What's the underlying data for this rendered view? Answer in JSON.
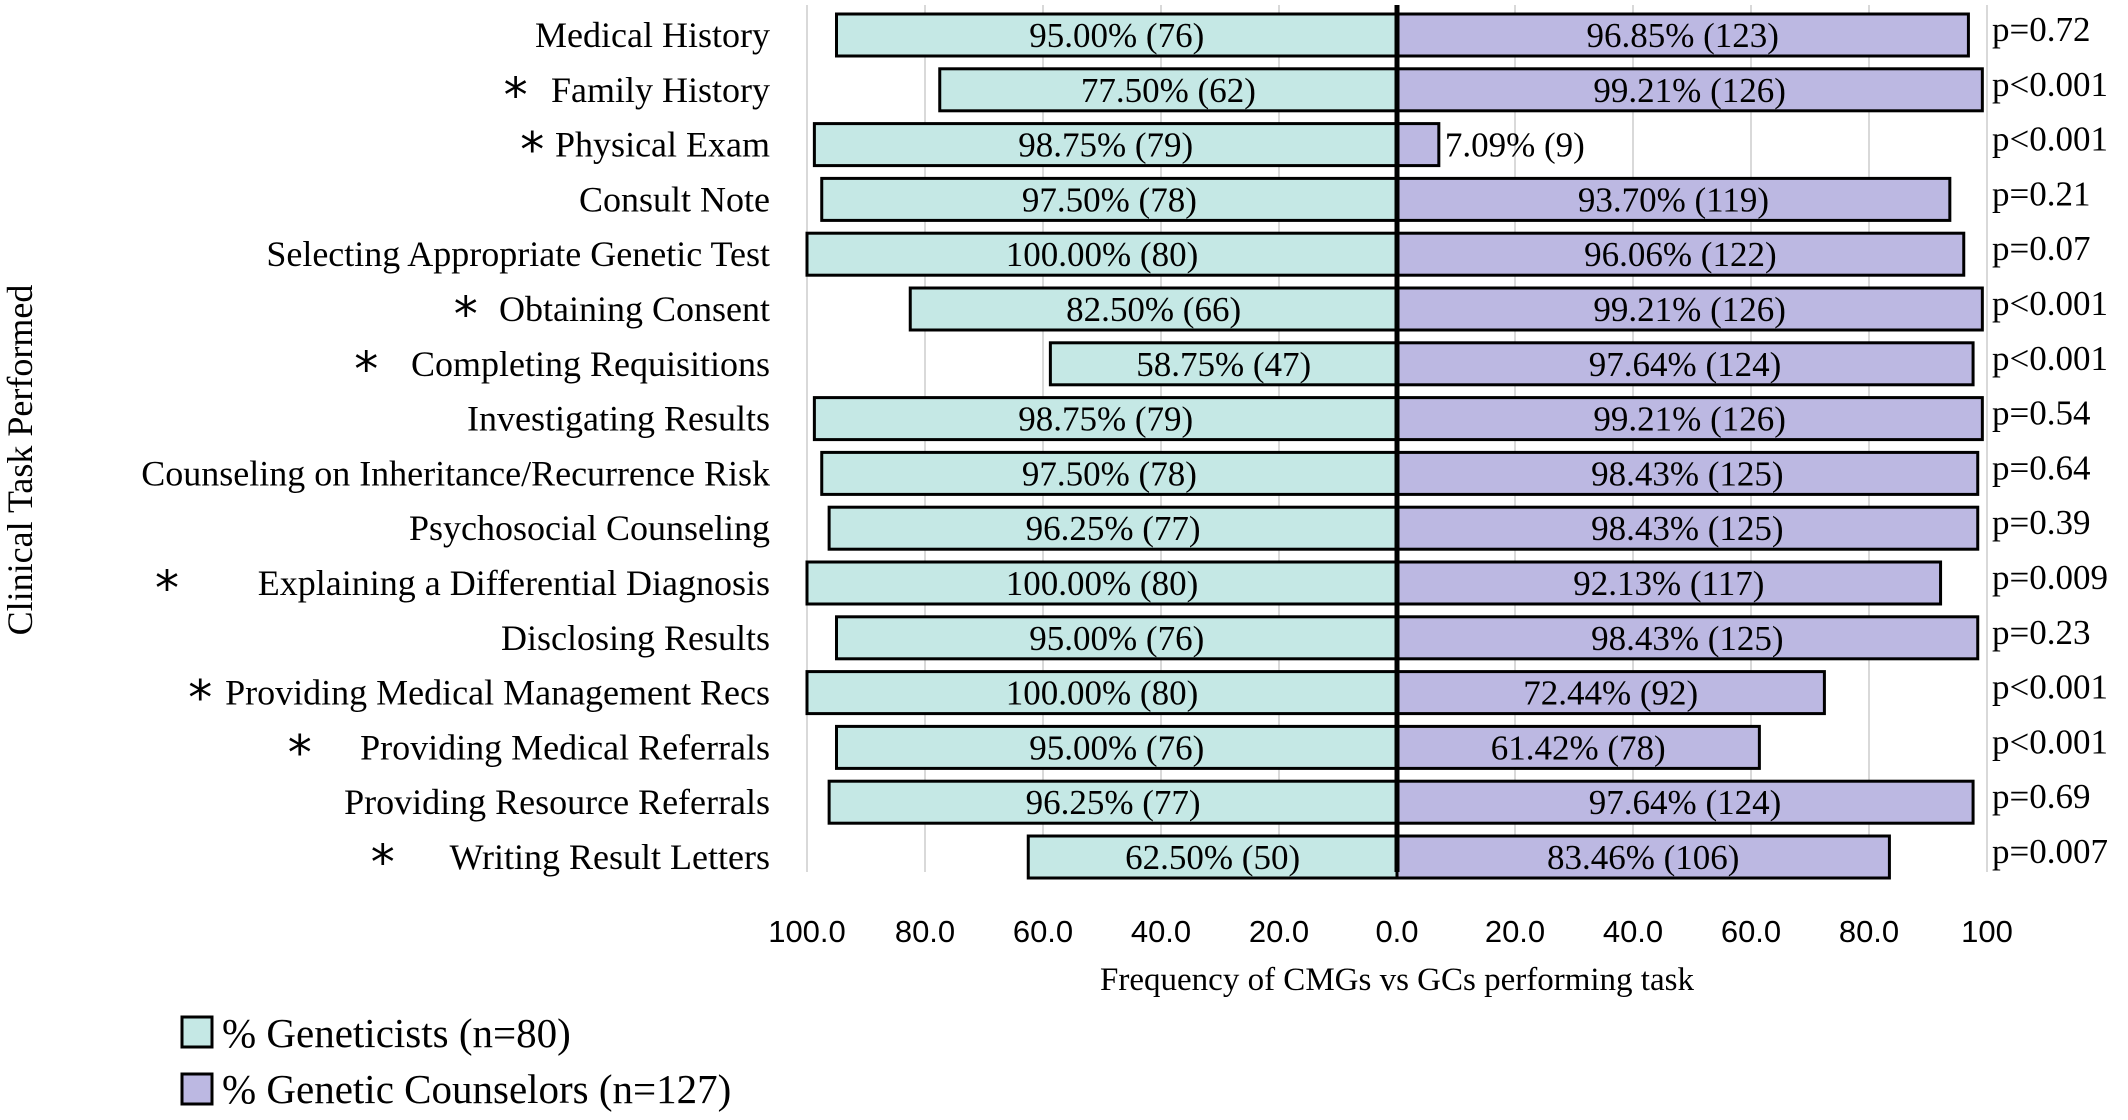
{
  "chart_data": {
    "type": "bar",
    "orientation": "horizontal",
    "layout": "diverging",
    "categories": [
      "Medical History",
      "Family History",
      "Physical Exam",
      "Consult Note",
      "Selecting Appropriate Genetic Test",
      "Obtaining Consent",
      "Completing Requisitions",
      "Investigating Results",
      "Counseling on Inheritance/Recurrence Risk",
      "Psychosocial Counseling",
      "Explaining a Differential Diagnosis",
      "Disclosing Results",
      "Providing Medical Management Recs",
      "Providing Medical Referrals",
      "Providing Resource Referrals",
      "Writing Result Letters"
    ],
    "starred": [
      false,
      true,
      true,
      false,
      false,
      true,
      true,
      false,
      false,
      false,
      true,
      false,
      true,
      true,
      false,
      true
    ],
    "series": [
      {
        "name": "% Geneticists (n=80)",
        "side": "left",
        "color": "#c5e8e5",
        "values": [
          95.0,
          77.5,
          98.75,
          97.5,
          100.0,
          82.5,
          58.75,
          98.75,
          97.5,
          96.25,
          100.0,
          95.0,
          100.0,
          95.0,
          96.25,
          62.5
        ],
        "labels": [
          "95.00% (76)",
          "77.50% (62)",
          "98.75% (79)",
          "97.50% (78)",
          "100.00% (80)",
          "82.50% (66)",
          "58.75% (47)",
          "98.75% (79)",
          "97.50% (78)",
          "96.25% (77)",
          "100.00% (80)",
          "95.00% (76)",
          "100.00% (80)",
          "95.00% (76)",
          "96.25% (77)",
          "62.50% (50)"
        ]
      },
      {
        "name": "% Genetic Counselors (n=127)",
        "side": "right",
        "color": "#bcb8e2",
        "values": [
          96.85,
          99.21,
          7.09,
          93.7,
          96.06,
          99.21,
          97.64,
          99.21,
          98.43,
          98.43,
          92.13,
          98.43,
          72.44,
          61.42,
          97.64,
          83.46
        ],
        "labels": [
          "96.85% (123)",
          "99.21% (126)",
          "7.09% (9)",
          "93.70% (119)",
          "96.06% (122)",
          "99.21% (126)",
          "97.64% (124)",
          "99.21% (126)",
          "98.43% (125)",
          "98.43% (125)",
          "92.13% (117)",
          "98.43% (125)",
          "72.44% (92)",
          "61.42% (78)",
          "97.64% (124)",
          "83.46% (106)"
        ]
      }
    ],
    "p_values": [
      "p=0.72",
      "p<0.001",
      "p<0.001",
      "p=0.21",
      "p=0.07",
      "p<0.001",
      "p<0.001",
      "p=0.54",
      "p=0.64",
      "p=0.39",
      "p=0.009",
      "p=0.23",
      "p<0.001",
      "p<0.001",
      "p=0.69",
      "p=0.007"
    ],
    "x_ticks_left": [
      "100.0",
      "80.0",
      "60.0",
      "40.0",
      "20.0",
      "0.0"
    ],
    "x_ticks_right": [
      "20.0",
      "40.0",
      "60.0",
      "80.0",
      "100"
    ],
    "xlim": [
      0,
      100
    ],
    "xlabel": "Frequency of CMGs vs GCs performing task",
    "ylabel": "Clinical Task Performed",
    "star_symbol": "*",
    "grid": "vertical",
    "legend_position": "bottom-left"
  }
}
